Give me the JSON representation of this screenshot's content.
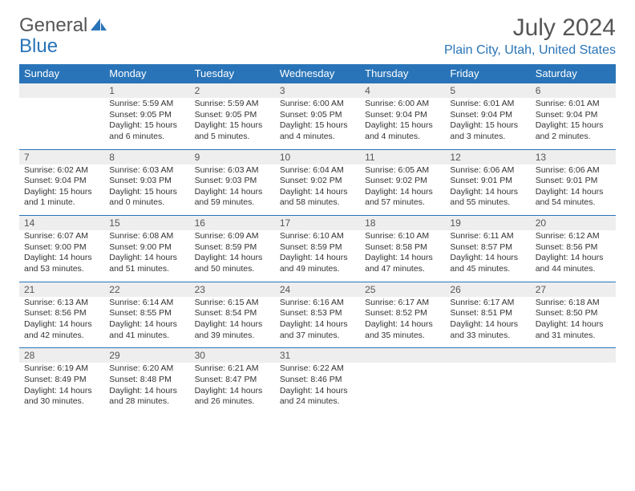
{
  "logo": {
    "part1": "General",
    "part2": "Blue"
  },
  "title": "July 2024",
  "location": "Plain City, Utah, United States",
  "days": [
    "Sunday",
    "Monday",
    "Tuesday",
    "Wednesday",
    "Thursday",
    "Friday",
    "Saturday"
  ],
  "colors": {
    "header_bg": "#2974b8",
    "header_fg": "#ffffff",
    "date_bg": "#eeeeee",
    "border": "#2974b8"
  },
  "weeks": [
    [
      {
        "date": "",
        "sunrise": "",
        "sunset": "",
        "daylight": ""
      },
      {
        "date": "1",
        "sunrise": "Sunrise: 5:59 AM",
        "sunset": "Sunset: 9:05 PM",
        "daylight": "Daylight: 15 hours and 6 minutes."
      },
      {
        "date": "2",
        "sunrise": "Sunrise: 5:59 AM",
        "sunset": "Sunset: 9:05 PM",
        "daylight": "Daylight: 15 hours and 5 minutes."
      },
      {
        "date": "3",
        "sunrise": "Sunrise: 6:00 AM",
        "sunset": "Sunset: 9:05 PM",
        "daylight": "Daylight: 15 hours and 4 minutes."
      },
      {
        "date": "4",
        "sunrise": "Sunrise: 6:00 AM",
        "sunset": "Sunset: 9:04 PM",
        "daylight": "Daylight: 15 hours and 4 minutes."
      },
      {
        "date": "5",
        "sunrise": "Sunrise: 6:01 AM",
        "sunset": "Sunset: 9:04 PM",
        "daylight": "Daylight: 15 hours and 3 minutes."
      },
      {
        "date": "6",
        "sunrise": "Sunrise: 6:01 AM",
        "sunset": "Sunset: 9:04 PM",
        "daylight": "Daylight: 15 hours and 2 minutes."
      }
    ],
    [
      {
        "date": "7",
        "sunrise": "Sunrise: 6:02 AM",
        "sunset": "Sunset: 9:04 PM",
        "daylight": "Daylight: 15 hours and 1 minute."
      },
      {
        "date": "8",
        "sunrise": "Sunrise: 6:03 AM",
        "sunset": "Sunset: 9:03 PM",
        "daylight": "Daylight: 15 hours and 0 minutes."
      },
      {
        "date": "9",
        "sunrise": "Sunrise: 6:03 AM",
        "sunset": "Sunset: 9:03 PM",
        "daylight": "Daylight: 14 hours and 59 minutes."
      },
      {
        "date": "10",
        "sunrise": "Sunrise: 6:04 AM",
        "sunset": "Sunset: 9:02 PM",
        "daylight": "Daylight: 14 hours and 58 minutes."
      },
      {
        "date": "11",
        "sunrise": "Sunrise: 6:05 AM",
        "sunset": "Sunset: 9:02 PM",
        "daylight": "Daylight: 14 hours and 57 minutes."
      },
      {
        "date": "12",
        "sunrise": "Sunrise: 6:06 AM",
        "sunset": "Sunset: 9:01 PM",
        "daylight": "Daylight: 14 hours and 55 minutes."
      },
      {
        "date": "13",
        "sunrise": "Sunrise: 6:06 AM",
        "sunset": "Sunset: 9:01 PM",
        "daylight": "Daylight: 14 hours and 54 minutes."
      }
    ],
    [
      {
        "date": "14",
        "sunrise": "Sunrise: 6:07 AM",
        "sunset": "Sunset: 9:00 PM",
        "daylight": "Daylight: 14 hours and 53 minutes."
      },
      {
        "date": "15",
        "sunrise": "Sunrise: 6:08 AM",
        "sunset": "Sunset: 9:00 PM",
        "daylight": "Daylight: 14 hours and 51 minutes."
      },
      {
        "date": "16",
        "sunrise": "Sunrise: 6:09 AM",
        "sunset": "Sunset: 8:59 PM",
        "daylight": "Daylight: 14 hours and 50 minutes."
      },
      {
        "date": "17",
        "sunrise": "Sunrise: 6:10 AM",
        "sunset": "Sunset: 8:59 PM",
        "daylight": "Daylight: 14 hours and 49 minutes."
      },
      {
        "date": "18",
        "sunrise": "Sunrise: 6:10 AM",
        "sunset": "Sunset: 8:58 PM",
        "daylight": "Daylight: 14 hours and 47 minutes."
      },
      {
        "date": "19",
        "sunrise": "Sunrise: 6:11 AM",
        "sunset": "Sunset: 8:57 PM",
        "daylight": "Daylight: 14 hours and 45 minutes."
      },
      {
        "date": "20",
        "sunrise": "Sunrise: 6:12 AM",
        "sunset": "Sunset: 8:56 PM",
        "daylight": "Daylight: 14 hours and 44 minutes."
      }
    ],
    [
      {
        "date": "21",
        "sunrise": "Sunrise: 6:13 AM",
        "sunset": "Sunset: 8:56 PM",
        "daylight": "Daylight: 14 hours and 42 minutes."
      },
      {
        "date": "22",
        "sunrise": "Sunrise: 6:14 AM",
        "sunset": "Sunset: 8:55 PM",
        "daylight": "Daylight: 14 hours and 41 minutes."
      },
      {
        "date": "23",
        "sunrise": "Sunrise: 6:15 AM",
        "sunset": "Sunset: 8:54 PM",
        "daylight": "Daylight: 14 hours and 39 minutes."
      },
      {
        "date": "24",
        "sunrise": "Sunrise: 6:16 AM",
        "sunset": "Sunset: 8:53 PM",
        "daylight": "Daylight: 14 hours and 37 minutes."
      },
      {
        "date": "25",
        "sunrise": "Sunrise: 6:17 AM",
        "sunset": "Sunset: 8:52 PM",
        "daylight": "Daylight: 14 hours and 35 minutes."
      },
      {
        "date": "26",
        "sunrise": "Sunrise: 6:17 AM",
        "sunset": "Sunset: 8:51 PM",
        "daylight": "Daylight: 14 hours and 33 minutes."
      },
      {
        "date": "27",
        "sunrise": "Sunrise: 6:18 AM",
        "sunset": "Sunset: 8:50 PM",
        "daylight": "Daylight: 14 hours and 31 minutes."
      }
    ],
    [
      {
        "date": "28",
        "sunrise": "Sunrise: 6:19 AM",
        "sunset": "Sunset: 8:49 PM",
        "daylight": "Daylight: 14 hours and 30 minutes."
      },
      {
        "date": "29",
        "sunrise": "Sunrise: 6:20 AM",
        "sunset": "Sunset: 8:48 PM",
        "daylight": "Daylight: 14 hours and 28 minutes."
      },
      {
        "date": "30",
        "sunrise": "Sunrise: 6:21 AM",
        "sunset": "Sunset: 8:47 PM",
        "daylight": "Daylight: 14 hours and 26 minutes."
      },
      {
        "date": "31",
        "sunrise": "Sunrise: 6:22 AM",
        "sunset": "Sunset: 8:46 PM",
        "daylight": "Daylight: 14 hours and 24 minutes."
      },
      {
        "date": "",
        "sunrise": "",
        "sunset": "",
        "daylight": ""
      },
      {
        "date": "",
        "sunrise": "",
        "sunset": "",
        "daylight": ""
      },
      {
        "date": "",
        "sunrise": "",
        "sunset": "",
        "daylight": ""
      }
    ]
  ]
}
